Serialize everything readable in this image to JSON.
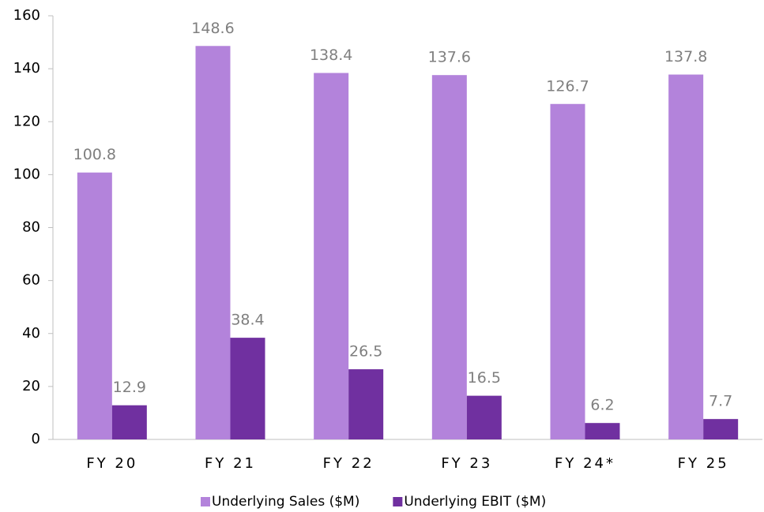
{
  "chart_data": {
    "type": "bar",
    "categories": [
      "FY 20",
      "FY 21",
      "FY 22",
      "FY 23",
      "FY 24*",
      "FY 25"
    ],
    "series": [
      {
        "name": "Underlying Sales ($M)",
        "color": "#b383db",
        "values": [
          100.8,
          148.6,
          138.4,
          137.6,
          126.7,
          137.8
        ]
      },
      {
        "name": "Underlying EBIT ($M)",
        "color": "#7030a0",
        "values": [
          12.9,
          38.4,
          26.5,
          16.5,
          6.2,
          7.7
        ]
      }
    ],
    "ylim": [
      0,
      160
    ],
    "yticks": [
      0,
      20,
      40,
      60,
      80,
      100,
      120,
      140,
      160
    ],
    "grid": false,
    "legend": "bottom"
  }
}
